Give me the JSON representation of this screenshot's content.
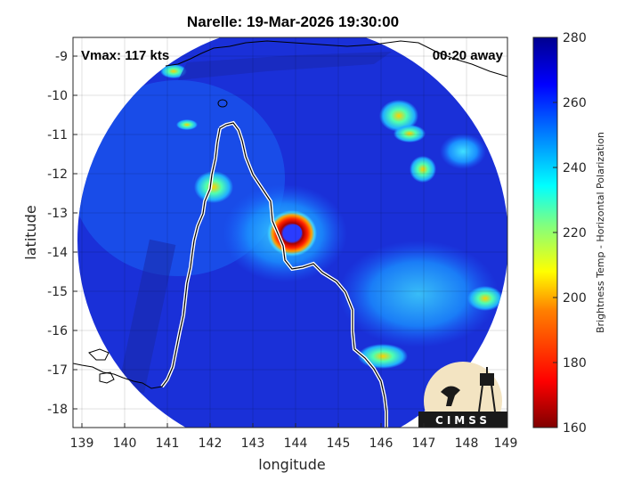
{
  "title": "Narelle: 19-Mar-2026 19:30:00",
  "overlays": {
    "vmax": "Vmax: 117 kts",
    "away": "00:20 away"
  },
  "axes": {
    "xlabel": "longitude",
    "ylabel": "latitude",
    "xticks": [
      "139",
      "140",
      "141",
      "142",
      "143",
      "144",
      "145",
      "146",
      "147",
      "148",
      "149"
    ],
    "yticks": [
      "-9",
      "-10",
      "-11",
      "-12",
      "-13",
      "-14",
      "-15",
      "-16",
      "-17",
      "-18"
    ]
  },
  "colorbar": {
    "label": "Brightness Temp - Horizontal Polarization",
    "ticks": [
      "160",
      "180",
      "200",
      "220",
      "240",
      "260",
      "280"
    ],
    "colormap": "jet",
    "range": [
      160,
      280
    ]
  },
  "logo": {
    "text": "CIMSS"
  },
  "chart_data": {
    "type": "heatmap",
    "title": "Narelle: 19-Mar-2026 19:30:00",
    "xlabel": "longitude",
    "ylabel": "latitude",
    "xlim": [
      138.8,
      149
    ],
    "ylim": [
      -18.5,
      -8.6
    ],
    "storm_center": {
      "lon": 143.9,
      "lat": -13.5
    },
    "vmax_kts": 117,
    "colorbar_range_K": [
      160,
      280
    ],
    "grid": true
  }
}
